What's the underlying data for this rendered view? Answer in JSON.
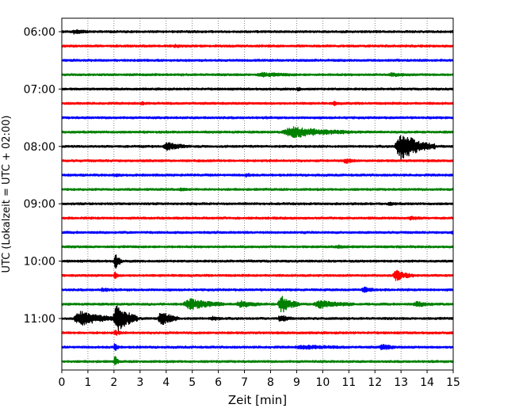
{
  "chart_data": {
    "type": "line",
    "title": "",
    "xlabel": "Zeit  [min]",
    "ylabel": "UTC (Lokalzeit = UTC + 02:00)",
    "xlim": [
      0,
      15
    ],
    "x_ticks": [
      0,
      1,
      2,
      3,
      4,
      5,
      6,
      7,
      8,
      9,
      10,
      11,
      12,
      13,
      14,
      15
    ],
    "x_tick_labels": [
      "0",
      "1",
      "2",
      "3",
      "4",
      "5",
      "6",
      "7",
      "8",
      "9",
      "10",
      "11",
      "12",
      "13",
      "14",
      "15"
    ],
    "y_tick_labels": [
      "06:00",
      "07:00",
      "08:00",
      "09:00",
      "10:00",
      "11:00"
    ],
    "y_tick_trace_index": [
      0,
      4,
      8,
      12,
      16,
      20
    ],
    "trace_interval_minutes": 15,
    "x_grid": true,
    "x_grid_style": "dotted",
    "color_cycle": [
      "#000000",
      "#ff0000",
      "#0000ff",
      "#008000"
    ],
    "traces": [
      {
        "start": "06:00",
        "events": [
          {
            "t": 0.4,
            "amp": 0.25,
            "dur": 0.6
          }
        ]
      },
      {
        "start": "06:15",
        "events": [
          {
            "t": 4.3,
            "amp": 0.15,
            "dur": 0.3
          }
        ]
      },
      {
        "start": "06:30",
        "events": []
      },
      {
        "start": "06:45",
        "events": [
          {
            "t": 7.5,
            "amp": 0.2,
            "dur": 1.5
          },
          {
            "t": 12.5,
            "amp": 0.15,
            "dur": 1.0
          }
        ]
      },
      {
        "start": "07:00",
        "events": [
          {
            "t": 9.0,
            "amp": 0.3,
            "dur": 0.2
          }
        ]
      },
      {
        "start": "07:15",
        "events": [
          {
            "t": 3.0,
            "amp": 0.15,
            "dur": 0.3
          },
          {
            "t": 10.4,
            "amp": 0.3,
            "dur": 0.2
          }
        ]
      },
      {
        "start": "07:30",
        "events": []
      },
      {
        "start": "07:45",
        "events": [
          {
            "t": 8.5,
            "amp": 0.7,
            "dur": 2.5
          }
        ]
      },
      {
        "start": "08:00",
        "events": [
          {
            "t": 3.9,
            "amp": 0.5,
            "dur": 1.0
          },
          {
            "t": 12.8,
            "amp": 2.0,
            "dur": 1.5
          }
        ]
      },
      {
        "start": "08:15",
        "events": [
          {
            "t": 10.8,
            "amp": 0.3,
            "dur": 0.5
          }
        ]
      },
      {
        "start": "08:30",
        "events": [
          {
            "t": 2.0,
            "amp": 0.15,
            "dur": 0.4
          },
          {
            "t": 7.0,
            "amp": 0.15,
            "dur": 0.4
          }
        ]
      },
      {
        "start": "08:45",
        "events": [
          {
            "t": 4.5,
            "amp": 0.15,
            "dur": 0.4
          }
        ]
      },
      {
        "start": "09:00",
        "events": [
          {
            "t": 12.5,
            "amp": 0.15,
            "dur": 0.4
          }
        ]
      },
      {
        "start": "09:15",
        "events": [
          {
            "t": 13.3,
            "amp": 0.2,
            "dur": 0.5
          }
        ]
      },
      {
        "start": "09:30",
        "events": [
          {
            "t": 14.9,
            "amp": 0.2,
            "dur": 0.3
          }
        ]
      },
      {
        "start": "09:45",
        "events": [
          {
            "t": 10.5,
            "amp": 0.15,
            "dur": 0.5
          }
        ]
      },
      {
        "start": "10:00",
        "events": [
          {
            "t": 2.0,
            "amp": 1.2,
            "dur": 0.3
          }
        ]
      },
      {
        "start": "10:15",
        "events": [
          {
            "t": 12.7,
            "amp": 0.7,
            "dur": 0.8
          },
          {
            "t": 2.0,
            "amp": 0.5,
            "dur": 0.2
          }
        ]
      },
      {
        "start": "10:30",
        "events": [
          {
            "t": 1.5,
            "amp": 0.2,
            "dur": 0.5
          },
          {
            "t": 11.5,
            "amp": 0.3,
            "dur": 0.6
          }
        ]
      },
      {
        "start": "10:45",
        "events": [
          {
            "t": 4.7,
            "amp": 0.7,
            "dur": 1.5
          },
          {
            "t": 6.7,
            "amp": 0.4,
            "dur": 1.0
          },
          {
            "t": 8.3,
            "amp": 1.2,
            "dur": 0.8
          },
          {
            "t": 9.7,
            "amp": 0.5,
            "dur": 1.5
          },
          {
            "t": 13.5,
            "amp": 0.3,
            "dur": 0.8
          }
        ]
      },
      {
        "start": "11:00",
        "events": [
          {
            "t": 0.5,
            "amp": 1.0,
            "dur": 1.6
          },
          {
            "t": 2.0,
            "amp": 2.2,
            "dur": 0.9
          },
          {
            "t": 3.7,
            "amp": 1.0,
            "dur": 0.8
          },
          {
            "t": 5.7,
            "amp": 0.2,
            "dur": 0.5
          },
          {
            "t": 8.3,
            "amp": 0.5,
            "dur": 0.5
          }
        ]
      },
      {
        "start": "11:15",
        "events": [
          {
            "t": 2.0,
            "amp": 0.3,
            "dur": 0.3
          }
        ]
      },
      {
        "start": "11:30",
        "events": [
          {
            "t": 9.0,
            "amp": 0.2,
            "dur": 2.0
          },
          {
            "t": 12.2,
            "amp": 0.4,
            "dur": 0.6
          },
          {
            "t": 2.0,
            "amp": 0.6,
            "dur": 0.2
          }
        ]
      },
      {
        "start": "11:45",
        "events": [
          {
            "t": 2.0,
            "amp": 0.8,
            "dur": 0.2
          }
        ]
      }
    ]
  }
}
